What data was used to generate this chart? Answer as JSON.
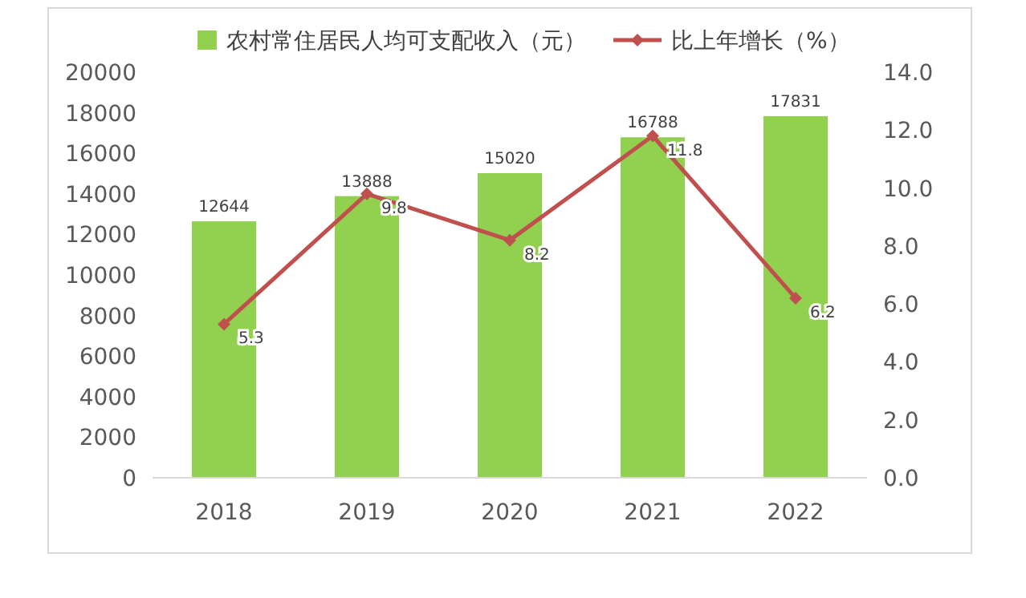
{
  "chart_data": {
    "type": "bar",
    "categories": [
      "2018",
      "2019",
      "2020",
      "2021",
      "2022"
    ],
    "series": [
      {
        "name": "农村常住居民人均可支配收入（元）",
        "color": "#92d050",
        "values": [
          12644,
          13888,
          15020,
          16788,
          17831
        ]
      },
      {
        "name": "比上年增长（%）",
        "type": "line",
        "axis": "y2",
        "color": "#c0504d",
        "values": [
          5.3,
          9.8,
          8.2,
          11.8,
          6.2
        ],
        "marker": "diamond"
      }
    ],
    "ylim": [
      0,
      20000
    ],
    "yticks": [
      0,
      2000,
      4000,
      6000,
      8000,
      10000,
      12000,
      14000,
      16000,
      18000,
      20000
    ],
    "y2lim": [
      0,
      14
    ],
    "y2ticks": [
      {
        "value": 0,
        "label": "0.0"
      },
      {
        "value": 2,
        "label": "2.0"
      },
      {
        "value": 4,
        "label": "4.0"
      },
      {
        "value": 6,
        "label": "6.0"
      },
      {
        "value": 8,
        "label": "8.0"
      },
      {
        "value": 10,
        "label": "10.0"
      },
      {
        "value": 12,
        "label": "12.0"
      },
      {
        "value": 14,
        "label": "14.0"
      }
    ],
    "data_labels": true,
    "legend": "top",
    "grid": false
  }
}
